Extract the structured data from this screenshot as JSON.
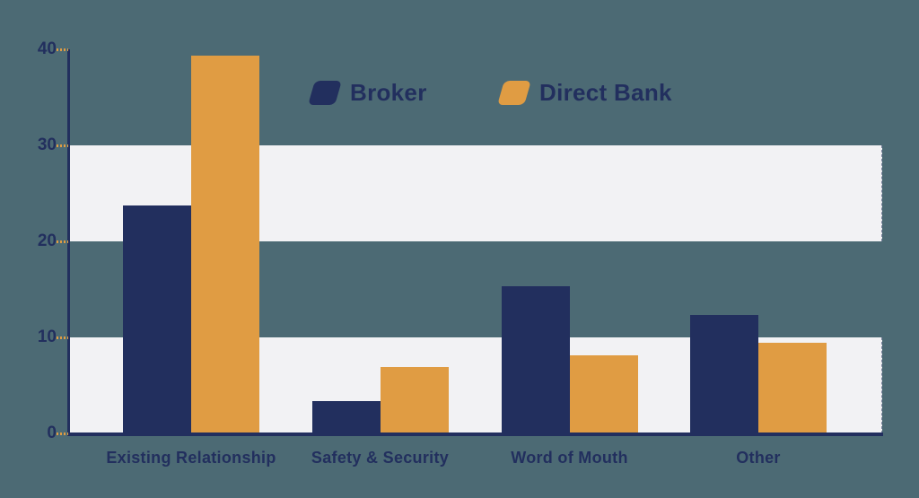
{
  "page": {
    "background_color": "#4c6a74"
  },
  "chart_data": {
    "type": "bar",
    "title": "",
    "xlabel": "",
    "ylabel": "",
    "categories": [
      "Existing Relationship",
      "Safety & Security",
      "Word of Mouth",
      "Other"
    ],
    "series": [
      {
        "name": "Broker",
        "color": "#222f5e",
        "values": [
          23.7,
          3.4,
          15.3,
          12.3
        ]
      },
      {
        "name": "Direct Bank",
        "color": "#e09c43",
        "values": [
          39.3,
          6.9,
          8.1,
          9.4
        ]
      }
    ],
    "ylim": [
      0,
      40
    ],
    "yticks": [
      0,
      10,
      20,
      30,
      40
    ],
    "grid_bands": [
      [
        0,
        10
      ],
      [
        20,
        30
      ]
    ],
    "band_color": "#f2f2f4",
    "axis_color": "#222f5e",
    "tick_dash_color": "#e09c43",
    "label_color": "#222f5e",
    "legend_position": "top-center",
    "legend": [
      "Broker",
      "Direct Bank"
    ]
  }
}
